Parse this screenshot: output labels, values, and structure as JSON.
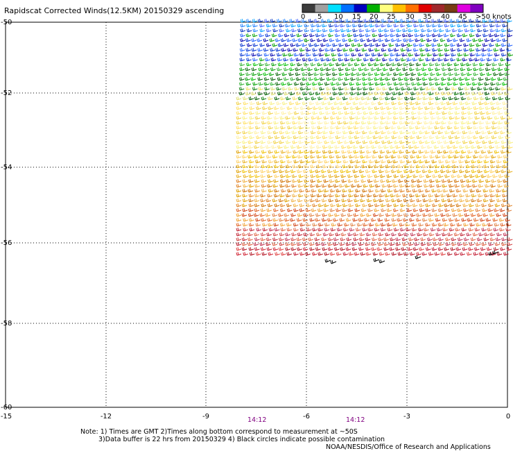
{
  "title": "Rapidscat Corrected Winds(12.5KM) 20150329 ascending",
  "legend": {
    "labels": [
      "0",
      "5",
      "10",
      "15",
      "20",
      "25",
      "30",
      "35",
      "40",
      "45",
      ">50 knots"
    ],
    "colors": [
      "#3c3c3c",
      "#a0a0a0",
      "#00e0ff",
      "#0070ff",
      "#0000c0",
      "#00b000",
      "#ffff80",
      "#ffc000",
      "#ff7000",
      "#e00000",
      "#a0282c",
      "#783c14",
      "#e000e0",
      "#8000c0"
    ]
  },
  "axes": {
    "x_ticks": [
      "-15",
      "-12",
      "-9",
      "-6",
      "-3",
      "0"
    ],
    "y_ticks": [
      "-50",
      "-52",
      "-54",
      "-56",
      "-58",
      "-60"
    ]
  },
  "times": [
    "14:12",
    "14:12"
  ],
  "notes": {
    "line1": "Note: 1) Times are GMT 2)Times along bottom correspond to measurement at ~50S",
    "line2": "3)Data buffer is 22 hrs from 20150329 4) Black circles indicate possible contamination",
    "credit": "NOAA/NESDIS/Office of Research and Applications"
  }
}
